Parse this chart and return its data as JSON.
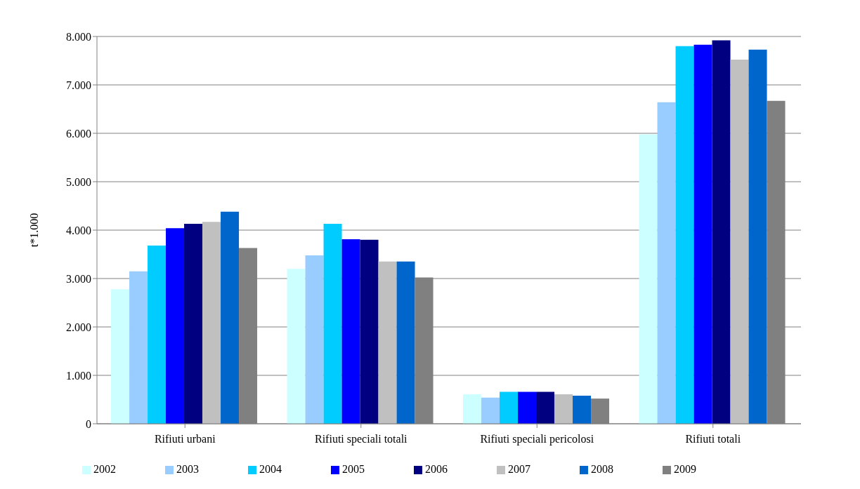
{
  "chart_data": {
    "type": "bar",
    "ylabel": "t*1.000",
    "categories": [
      "Rifiuti urbani",
      "Rifiuti speciali totali",
      "Rifiuti speciali pericolosi",
      "Rifiuti totali"
    ],
    "series": [
      {
        "name": "2002",
        "color": "#ccffff",
        "values": [
          2780,
          3200,
          610,
          5980
        ]
      },
      {
        "name": "2003",
        "color": "#99ccff",
        "values": [
          3150,
          3480,
          540,
          6640
        ]
      },
      {
        "name": "2004",
        "color": "#00ccff",
        "values": [
          3680,
          4130,
          660,
          7800
        ]
      },
      {
        "name": "2005",
        "color": "#0000ff",
        "values": [
          4040,
          3810,
          660,
          7830
        ]
      },
      {
        "name": "2006",
        "color": "#000080",
        "values": [
          4130,
          3800,
          660,
          7920
        ]
      },
      {
        "name": "2007",
        "color": "#c0c0c0",
        "values": [
          4170,
          3350,
          610,
          7520
        ]
      },
      {
        "name": "2008",
        "color": "#0066cc",
        "values": [
          4380,
          3350,
          580,
          7730
        ]
      },
      {
        "name": "2009",
        "color": "#808080",
        "values": [
          3630,
          3020,
          520,
          6670
        ]
      }
    ],
    "ylim": [
      0,
      8000
    ],
    "yticks": [
      0,
      {
        "value": 1000,
        "label": "1.000"
      },
      {
        "value": 2000,
        "label": "2.000"
      },
      {
        "value": 3000,
        "label": "3.000"
      },
      {
        "value": 4000,
        "label": "4.000"
      },
      {
        "value": 5000,
        "label": "5.000"
      },
      {
        "value": 6000,
        "label": "6.000"
      },
      {
        "value": 7000,
        "label": "7.000"
      },
      {
        "value": 8000,
        "label": "8.000"
      }
    ],
    "grid": "y",
    "legend": "bottom"
  }
}
